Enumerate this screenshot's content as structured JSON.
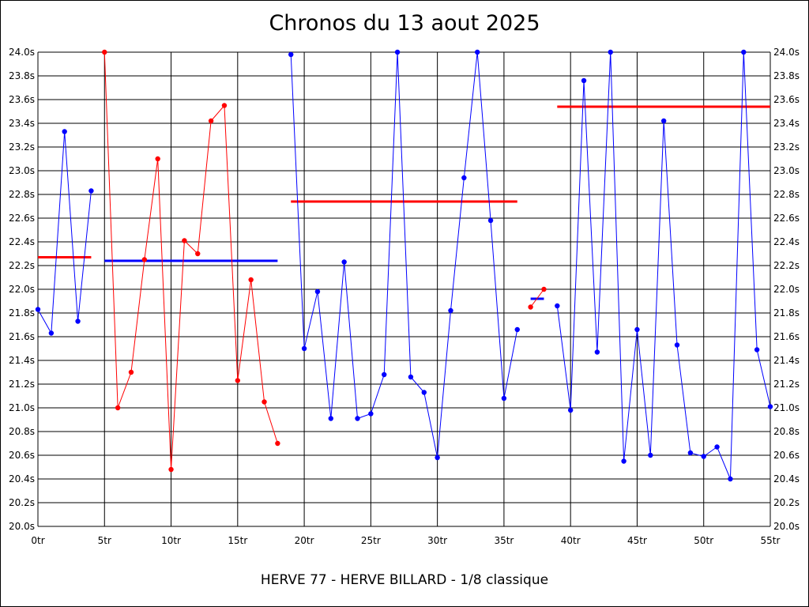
{
  "chart_data": {
    "type": "line",
    "title": "Chronos du 13 aout 2025",
    "caption": "HERVE 77 - HERVE BILLARD - 1/8 classique",
    "x_ticks": [
      "0tr",
      "5tr",
      "10tr",
      "15tr",
      "20tr",
      "25tr",
      "30tr",
      "35tr",
      "40tr",
      "45tr",
      "50tr",
      "55tr"
    ],
    "y_ticks": [
      "20.0s",
      "20.2s",
      "20.4s",
      "20.6s",
      "20.8s",
      "21.0s",
      "21.2s",
      "21.4s",
      "21.6s",
      "21.8s",
      "22.0s",
      "22.2s",
      "22.4s",
      "22.6s",
      "22.8s",
      "23.0s",
      "23.2s",
      "23.4s",
      "23.6s",
      "23.8s",
      "24.0s"
    ],
    "xlim": [
      0,
      55
    ],
    "ylim": [
      20.0,
      24.0
    ],
    "grid": true,
    "series": [
      {
        "color": "#0000ff",
        "points": [
          [
            0,
            21.83
          ],
          [
            1,
            21.63
          ],
          [
            2,
            23.33
          ],
          [
            3,
            21.73
          ],
          [
            4,
            22.83
          ]
        ]
      },
      {
        "color": "#ff0000",
        "points": [
          [
            5,
            24.0
          ],
          [
            6,
            21.0
          ],
          [
            7,
            21.3
          ],
          [
            8,
            22.25
          ],
          [
            9,
            23.1
          ],
          [
            10,
            20.48
          ],
          [
            11,
            22.41
          ],
          [
            12,
            22.3
          ],
          [
            13,
            23.42
          ],
          [
            14,
            23.55
          ],
          [
            15,
            21.23
          ],
          [
            16,
            22.08
          ],
          [
            17,
            21.05
          ],
          [
            18,
            20.7
          ]
        ]
      },
      {
        "color": "#0000ff",
        "points": [
          [
            19,
            23.98
          ],
          [
            20,
            21.5
          ],
          [
            21,
            21.98
          ],
          [
            22,
            20.91
          ],
          [
            23,
            22.23
          ],
          [
            24,
            20.91
          ],
          [
            25,
            20.95
          ],
          [
            26,
            21.28
          ],
          [
            27,
            24.0
          ],
          [
            28,
            21.26
          ],
          [
            29,
            21.13
          ],
          [
            30,
            20.58
          ],
          [
            31,
            21.82
          ],
          [
            32,
            22.94
          ],
          [
            33,
            24.0
          ],
          [
            34,
            22.58
          ],
          [
            35,
            21.08
          ],
          [
            36,
            21.66
          ]
        ]
      },
      {
        "color": "#ff0000",
        "points": [
          [
            37,
            21.85
          ],
          [
            38,
            22.0
          ]
        ]
      },
      {
        "color": "#0000ff",
        "points": [
          [
            39,
            21.86
          ],
          [
            40,
            20.98
          ],
          [
            41,
            23.76
          ],
          [
            42,
            21.47
          ],
          [
            43,
            24.0
          ],
          [
            44,
            20.55
          ],
          [
            45,
            21.66
          ],
          [
            46,
            20.6
          ],
          [
            47,
            23.42
          ],
          [
            48,
            21.53
          ],
          [
            49,
            20.62
          ],
          [
            50,
            20.59
          ],
          [
            51,
            20.67
          ],
          [
            52,
            20.4
          ],
          [
            53,
            24.0
          ],
          [
            54,
            21.49
          ],
          [
            55,
            21.01
          ]
        ]
      }
    ],
    "averages": [
      {
        "color": "#ff0000",
        "x": [
          0,
          4
        ],
        "y": 22.27
      },
      {
        "color": "#0000ff",
        "x": [
          5,
          18
        ],
        "y": 22.24
      },
      {
        "color": "#ff0000",
        "x": [
          19,
          36
        ],
        "y": 22.74
      },
      {
        "color": "#0000ff",
        "x": [
          37,
          38
        ],
        "y": 21.92
      },
      {
        "color": "#ff0000",
        "x": [
          39,
          55
        ],
        "y": 23.54
      }
    ]
  }
}
